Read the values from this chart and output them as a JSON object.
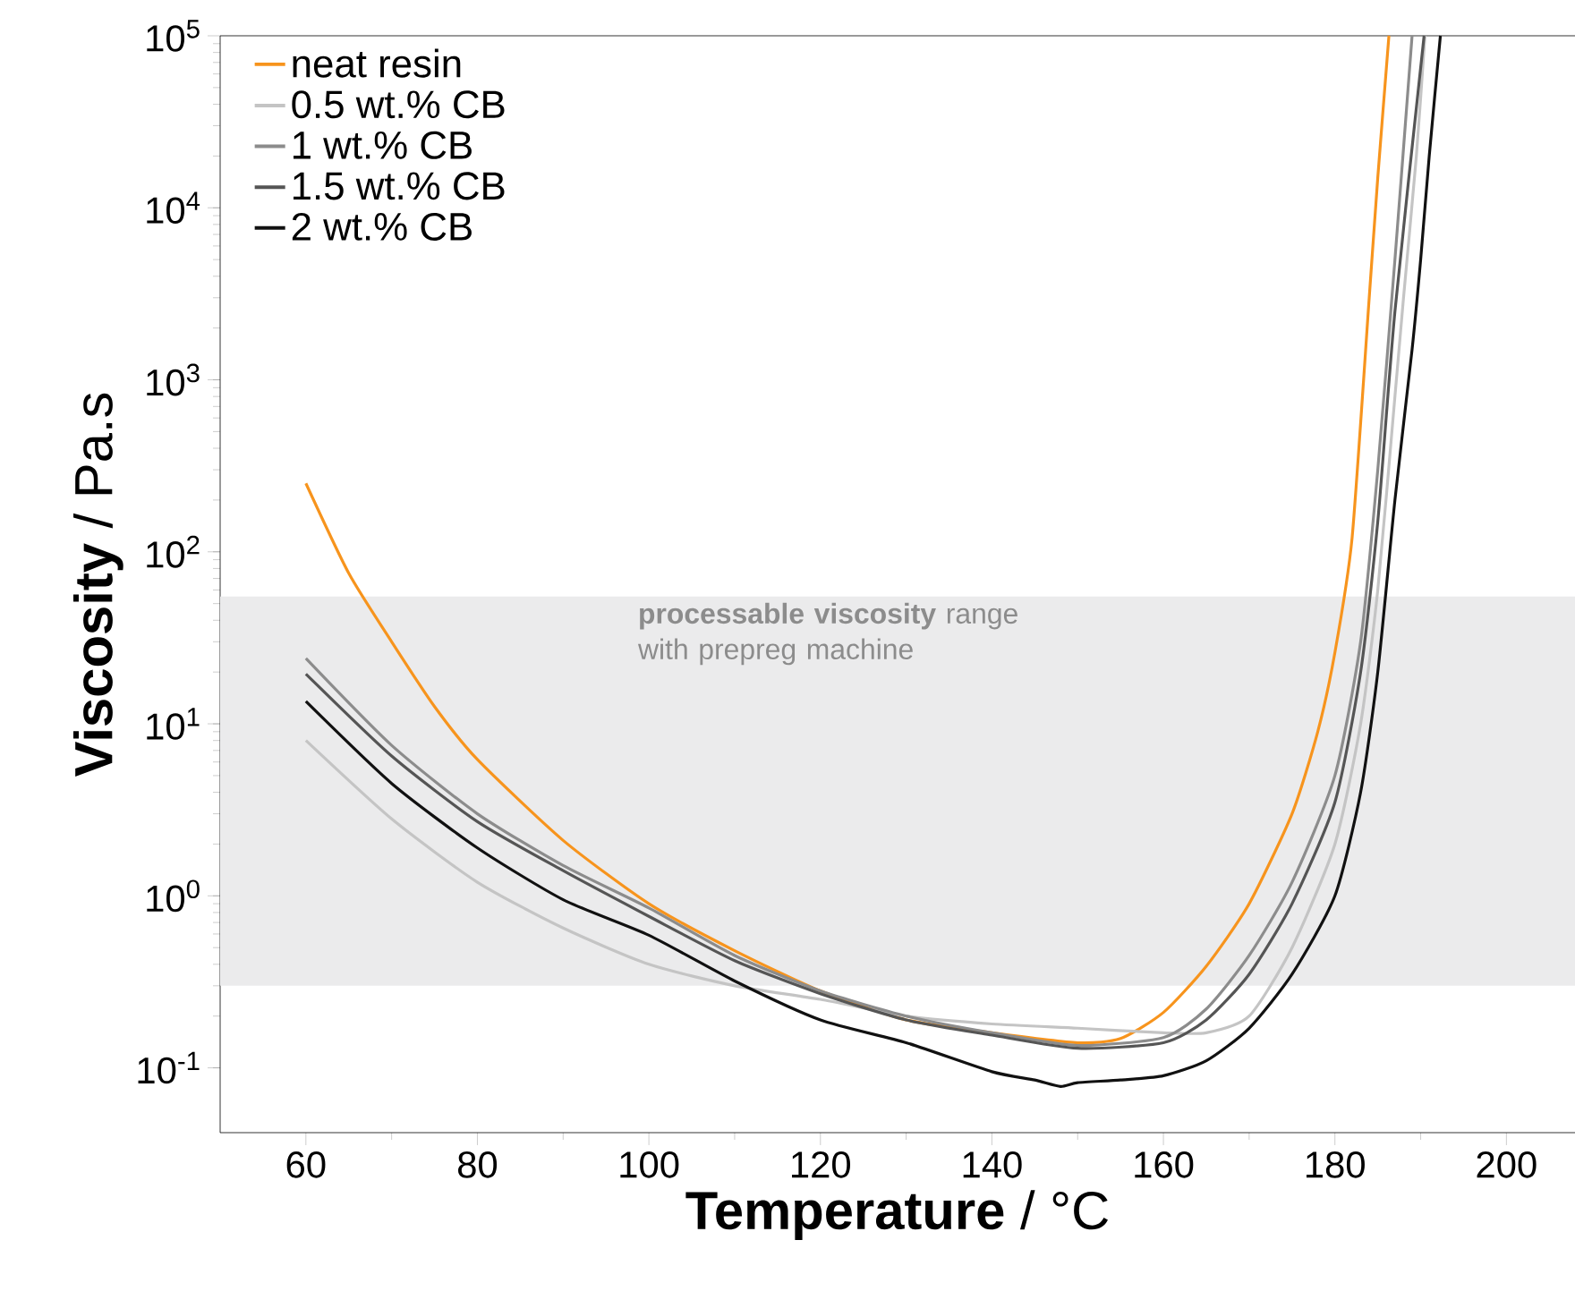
{
  "chart_data": {
    "type": "line",
    "xlabel": "**Temperature** / °C",
    "ylabel": "**Viscosity** / Pa.s",
    "log": "y",
    "xlim": [
      50,
      208
    ],
    "ylim": [
      0.042,
      100000
    ],
    "xticks": [
      60,
      80,
      100,
      120,
      140,
      160,
      180,
      200
    ],
    "yticks": [
      {
        "value": 0.1,
        "label": "10$^{-1}$"
      },
      {
        "value": 1,
        "label": "10$^{0}$"
      },
      {
        "value": 10,
        "label": "10$^{1}$"
      },
      {
        "value": 100,
        "label": "10$^{2}$"
      },
      {
        "value": 1000,
        "label": "10$^{3}$"
      },
      {
        "value": 10000,
        "label": "10$^{4}$"
      },
      {
        "value": 100000,
        "label": "10$^{5}$"
      }
    ],
    "legend": "top left",
    "bands": [
      {
        "axis": "y",
        "from": 0.3,
        "to": 55,
        "label": "**processable viscosity** range with prepreg machine",
        "color": "#ebebec"
      }
    ],
    "series": [
      {
        "name": "neat resin",
        "color": "#f7941d",
        "x": [
          60,
          65,
          70,
          75,
          80,
          90,
          100,
          110,
          120,
          130,
          140,
          150,
          155,
          160,
          165,
          170,
          175,
          178,
          180,
          182,
          184,
          185,
          186.3
        ],
        "values": [
          250,
          75,
          30,
          12.6,
          6.2,
          2.1,
          0.9,
          0.48,
          0.28,
          0.19,
          0.16,
          0.14,
          0.148,
          0.21,
          0.39,
          0.9,
          3,
          9,
          26,
          120,
          3000,
          15000,
          100000
        ]
      },
      {
        "name": "0.5 wt.% CB",
        "color": "#c4c4c4",
        "x": [
          60,
          70,
          80,
          90,
          100,
          110,
          120,
          130,
          140,
          150,
          160,
          165,
          170,
          175,
          180,
          183,
          185,
          187,
          188,
          189.5,
          190.5
        ],
        "values": [
          8,
          2.8,
          1.2,
          0.65,
          0.4,
          0.3,
          0.25,
          0.2,
          0.18,
          0.17,
          0.16,
          0.16,
          0.2,
          0.5,
          2,
          10,
          60,
          800,
          3000,
          20000,
          100000
        ]
      },
      {
        "name": "1 wt.% CB",
        "color": "#8c8c8c",
        "x": [
          60,
          70,
          80,
          90,
          100,
          110,
          120,
          130,
          140,
          150,
          160,
          165,
          170,
          175,
          180,
          183,
          185,
          187,
          189
        ],
        "values": [
          24,
          7.5,
          3,
          1.5,
          0.85,
          0.45,
          0.28,
          0.2,
          0.16,
          0.135,
          0.15,
          0.22,
          0.45,
          1.2,
          5,
          30,
          300,
          5000,
          100000
        ]
      },
      {
        "name": "1.5 wt.% CB",
        "color": "#555555",
        "x": [
          60,
          70,
          80,
          90,
          100,
          110,
          120,
          130,
          140,
          150,
          160,
          165,
          170,
          175,
          180,
          183,
          185,
          187,
          190.4
        ],
        "values": [
          19.5,
          6.5,
          2.7,
          1.4,
          0.76,
          0.42,
          0.27,
          0.19,
          0.155,
          0.13,
          0.14,
          0.19,
          0.35,
          0.9,
          3.5,
          20,
          150,
          2500,
          100000
        ]
      },
      {
        "name": "2 wt.% CB",
        "color": "#111111",
        "x": [
          60,
          70,
          80,
          90,
          100,
          110,
          120,
          130,
          140,
          145,
          148,
          150,
          155,
          160,
          165,
          170,
          175,
          180,
          183,
          185,
          187,
          189,
          190,
          191,
          192.3
        ],
        "values": [
          13.5,
          4.5,
          1.9,
          0.95,
          0.59,
          0.32,
          0.19,
          0.14,
          0.095,
          0.085,
          0.078,
          0.082,
          0.085,
          0.09,
          0.11,
          0.17,
          0.35,
          1,
          4,
          20,
          200,
          1500,
          5000,
          20000,
          100000
        ]
      }
    ]
  }
}
